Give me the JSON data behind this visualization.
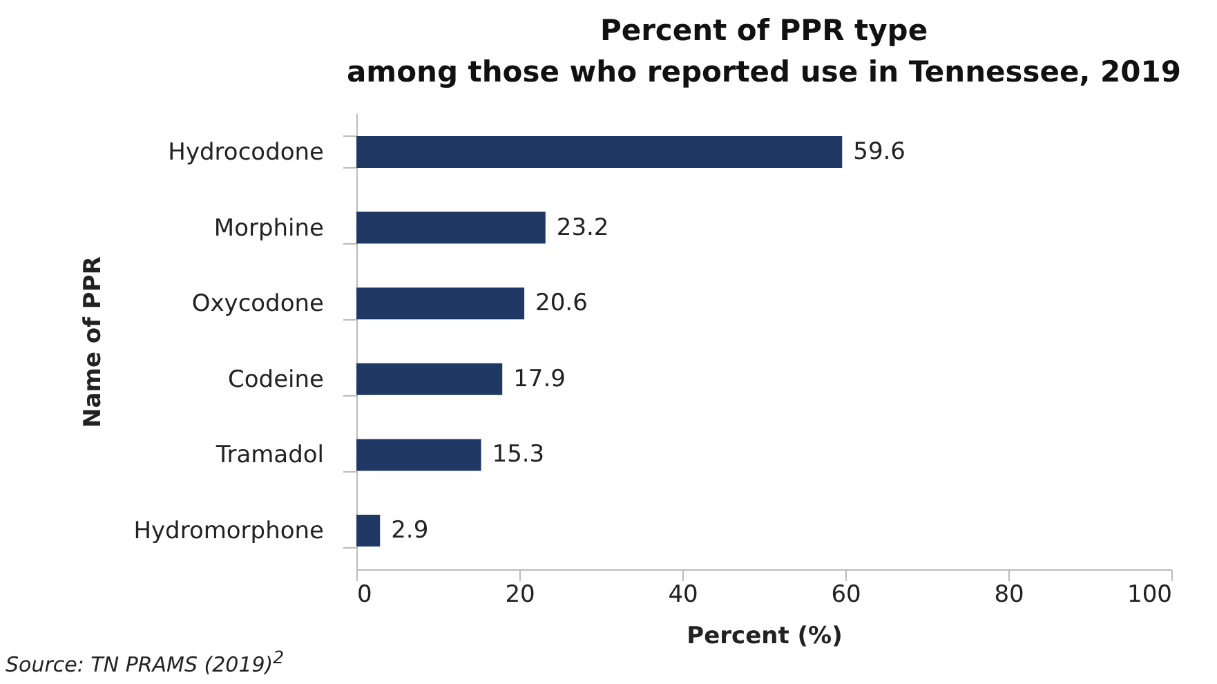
{
  "chart_data": {
    "type": "bar",
    "orientation": "horizontal",
    "title": "Percent of PPR type\namong those who reported use in Tennessee, 2019",
    "xlabel": "Percent (%)",
    "ylabel": "Name of PPR",
    "categories": [
      "Hydrocodone",
      "Morphine",
      "Oxycodone",
      "Codeine",
      "Tramadol",
      "Hydromorphone"
    ],
    "values": [
      59.6,
      23.2,
      20.6,
      17.9,
      15.3,
      2.9
    ],
    "color": "#1f3864",
    "data_labels": true,
    "xlim": [
      0,
      100
    ],
    "xticks": [
      0,
      20,
      40,
      60,
      80,
      100
    ],
    "grid": false,
    "annotations": [
      "Source: TN PRAMS (2019)$^{2}$"
    ]
  }
}
